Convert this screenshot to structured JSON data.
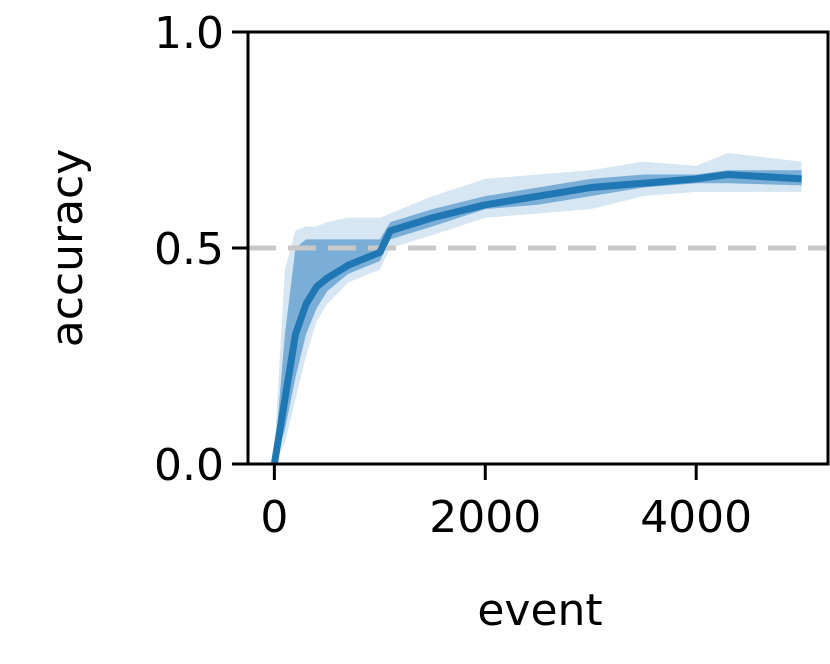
{
  "chart_data": {
    "type": "line",
    "xlabel": "event",
    "ylabel": "accuracy",
    "x": [
      0,
      100,
      200,
      300,
      400,
      500,
      700,
      1000,
      1100,
      1500,
      2000,
      2500,
      3000,
      3500,
      4000,
      4300,
      5000
    ],
    "series": [
      {
        "color": "#1f77b4",
        "values": [
          0,
          0.15,
          0.3,
          0.37,
          0.41,
          0.43,
          0.46,
          0.49,
          0.54,
          0.57,
          0.6,
          0.62,
          0.64,
          0.65,
          0.66,
          0.67,
          0.66
        ]
      }
    ],
    "bands": [
      {
        "color": "#d6e6f2",
        "lower": [
          0,
          0.05,
          0.15,
          0.25,
          0.33,
          0.37,
          0.42,
          0.45,
          0.5,
          0.53,
          0.57,
          0.58,
          0.59,
          0.62,
          0.63,
          0.63,
          0.63
        ],
        "upper": [
          0.03,
          0.45,
          0.54,
          0.55,
          0.55,
          0.56,
          0.57,
          0.57,
          0.58,
          0.62,
          0.66,
          0.67,
          0.68,
          0.7,
          0.69,
          0.72,
          0.7
        ]
      },
      {
        "color": "#7aaed6",
        "lower": [
          0,
          0.08,
          0.2,
          0.3,
          0.36,
          0.4,
          0.44,
          0.47,
          0.52,
          0.55,
          0.59,
          0.6,
          0.62,
          0.64,
          0.65,
          0.65,
          0.645
        ],
        "upper": [
          0.01,
          0.3,
          0.5,
          0.52,
          0.52,
          0.52,
          0.52,
          0.52,
          0.56,
          0.59,
          0.62,
          0.64,
          0.66,
          0.67,
          0.67,
          0.68,
          0.68
        ]
      }
    ],
    "hline": {
      "value": 0.5,
      "color": "#c8c8c8"
    },
    "xlim": [
      -250,
      5250
    ],
    "ylim": [
      0,
      1
    ],
    "xticks": [
      0,
      2000,
      4000
    ],
    "yticks": [
      {
        "value": 0,
        "label": "0.0"
      },
      {
        "value": 0.5,
        "label": "0.5"
      },
      {
        "value": 1,
        "label": "1.0"
      }
    ]
  }
}
